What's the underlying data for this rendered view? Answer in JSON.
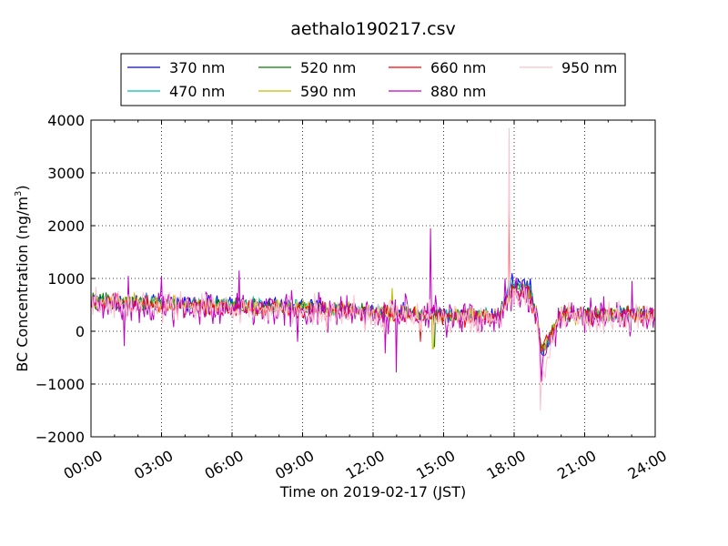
{
  "chart_data": {
    "type": "line",
    "title": "aethalo190217.csv",
    "xlabel": "Time on 2019-02-17 (JST)",
    "ylabel_main": "BC Concentration (ng/m",
    "ylabel_sup": "3",
    "ylabel_end": ")",
    "xlim_hours": [
      0,
      24
    ],
    "ylim": [
      -2000,
      4000
    ],
    "x_ticks": [
      {
        "hour": 0,
        "label": "00:00"
      },
      {
        "hour": 3,
        "label": "03:00"
      },
      {
        "hour": 6,
        "label": "06:00"
      },
      {
        "hour": 9,
        "label": "09:00"
      },
      {
        "hour": 12,
        "label": "12:00"
      },
      {
        "hour": 15,
        "label": "15:00"
      },
      {
        "hour": 18,
        "label": "18:00"
      },
      {
        "hour": 21,
        "label": "21:00"
      },
      {
        "hour": 24,
        "label": "24:00"
      }
    ],
    "y_ticks": [
      {
        "value": 4000,
        "label": "4000"
      },
      {
        "value": 3000,
        "label": "3000"
      },
      {
        "value": 2000,
        "label": "2000"
      },
      {
        "value": 1000,
        "label": "1000"
      },
      {
        "value": 0,
        "label": "0"
      },
      {
        "value": -1000,
        "label": "−1000"
      },
      {
        "value": -2000,
        "label": "−2000"
      }
    ],
    "grid": true,
    "legend_placement": "top",
    "series": [
      {
        "name": "370 nm",
        "color": "#0000ff",
        "base": [
          [
            0,
            600
          ],
          [
            3,
            560
          ],
          [
            6,
            520
          ],
          [
            9,
            500
          ],
          [
            12,
            400
          ],
          [
            15,
            330
          ],
          [
            17.4,
            320
          ],
          [
            17.85,
            900
          ],
          [
            18.6,
            950
          ],
          [
            19.0,
            250
          ],
          [
            19.15,
            -500
          ],
          [
            20,
            350
          ],
          [
            24,
            350
          ]
        ],
        "noise": 90,
        "spikes": [
          [
            17.9,
            1100
          ],
          [
            18.7,
            1000
          ]
        ]
      },
      {
        "name": "470 nm",
        "color": "#00bfa6",
        "base": [
          [
            0,
            580
          ],
          [
            3,
            540
          ],
          [
            6,
            500
          ],
          [
            9,
            470
          ],
          [
            12,
            380
          ],
          [
            15,
            300
          ],
          [
            17.4,
            300
          ],
          [
            17.85,
            820
          ],
          [
            18.6,
            850
          ],
          [
            19.0,
            230
          ],
          [
            19.15,
            -450
          ],
          [
            20,
            330
          ],
          [
            24,
            330
          ]
        ],
        "noise": 90,
        "spikes": [
          [
            17.85,
            1000
          ]
        ]
      },
      {
        "name": "520 nm",
        "color": "#008000",
        "base": [
          [
            0,
            560
          ],
          [
            3,
            520
          ],
          [
            6,
            480
          ],
          [
            9,
            450
          ],
          [
            12,
            360
          ],
          [
            15,
            290
          ],
          [
            17.4,
            290
          ],
          [
            17.85,
            780
          ],
          [
            18.6,
            800
          ],
          [
            19.0,
            220
          ],
          [
            19.15,
            -420
          ],
          [
            20,
            320
          ],
          [
            24,
            320
          ]
        ],
        "noise": 100,
        "spikes": [
          [
            14.6,
            -300
          ]
        ]
      },
      {
        "name": "590 nm",
        "color": "#bfbf00",
        "base": [
          [
            0,
            550
          ],
          [
            3,
            510
          ],
          [
            6,
            470
          ],
          [
            9,
            440
          ],
          [
            12,
            350
          ],
          [
            15,
            280
          ],
          [
            17.4,
            280
          ],
          [
            17.85,
            760
          ],
          [
            18.6,
            780
          ],
          [
            19.0,
            210
          ],
          [
            19.15,
            -400
          ],
          [
            20,
            310
          ],
          [
            24,
            310
          ]
        ],
        "noise": 110,
        "spikes": [
          [
            12.8,
            820
          ],
          [
            14.55,
            -330
          ]
        ]
      },
      {
        "name": "660 nm",
        "color": "#ff0000",
        "base": [
          [
            0,
            540
          ],
          [
            3,
            500
          ],
          [
            6,
            460
          ],
          [
            9,
            430
          ],
          [
            12,
            340
          ],
          [
            15,
            270
          ],
          [
            17.4,
            270
          ],
          [
            17.85,
            740
          ],
          [
            18.6,
            760
          ],
          [
            19.0,
            200
          ],
          [
            19.15,
            -380
          ],
          [
            20,
            300
          ],
          [
            24,
            300
          ]
        ],
        "noise": 120,
        "spikes": [
          [
            17.8,
            2400
          ],
          [
            14.0,
            -200
          ]
        ]
      },
      {
        "name": "880 nm",
        "color": "#bf00bf",
        "base": [
          [
            0,
            520
          ],
          [
            3,
            480
          ],
          [
            6,
            440
          ],
          [
            9,
            400
          ],
          [
            12,
            320
          ],
          [
            15,
            250
          ],
          [
            17.4,
            250
          ],
          [
            17.85,
            700
          ],
          [
            18.6,
            720
          ],
          [
            19.0,
            180
          ],
          [
            19.15,
            -600
          ],
          [
            20,
            280
          ],
          [
            24,
            280
          ]
        ],
        "noise": 230,
        "spikes": [
          [
            14.45,
            1950
          ],
          [
            6.3,
            1150
          ],
          [
            1.4,
            -280
          ],
          [
            13.0,
            -780
          ],
          [
            12.5,
            -420
          ],
          [
            8.8,
            -200
          ],
          [
            17.6,
            1000
          ],
          [
            23.0,
            950
          ],
          [
            1.6,
            1050
          ],
          [
            3.0,
            1050
          ]
        ]
      },
      {
        "name": "950 nm",
        "color": "#ffc0cb",
        "base": [
          [
            0,
            510
          ],
          [
            3,
            470
          ],
          [
            6,
            430
          ],
          [
            9,
            390
          ],
          [
            12,
            310
          ],
          [
            15,
            240
          ],
          [
            17.4,
            240
          ],
          [
            17.85,
            680
          ],
          [
            18.6,
            700
          ],
          [
            19.0,
            170
          ],
          [
            19.15,
            -900
          ],
          [
            20,
            270
          ],
          [
            24,
            270
          ]
        ],
        "noise": 200,
        "spikes": [
          [
            17.8,
            3850
          ],
          [
            19.1,
            -1500
          ]
        ]
      }
    ]
  }
}
